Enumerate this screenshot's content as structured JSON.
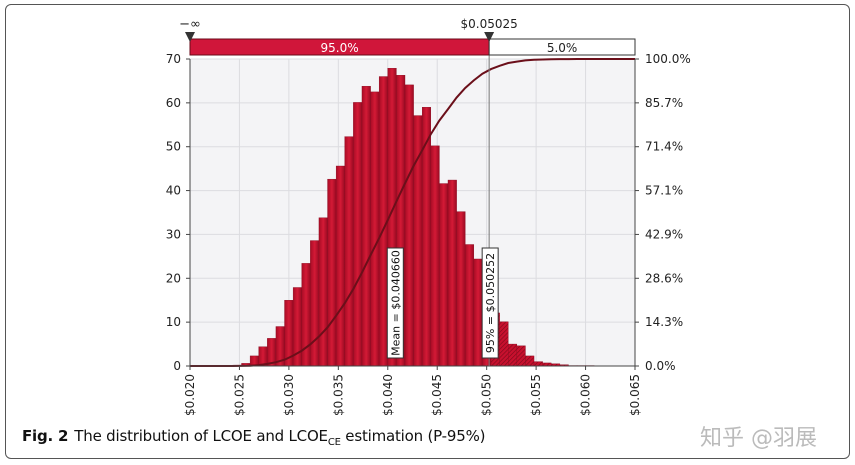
{
  "chart_data": {
    "type": "bar",
    "subtype": "histogram-with-cumulative-line",
    "bin_start": 0.0226,
    "bin_width": 0.00087,
    "values": [
      0.1,
      0.1,
      0.2,
      0.6,
      2.3,
      4.4,
      6.3,
      9.0,
      15.0,
      17.9,
      23.4,
      28.6,
      33.8,
      42.6,
      45.6,
      52.3,
      60.1,
      63.8,
      62.5,
      66.0,
      67.9,
      66.3,
      64.1,
      57.1,
      59.0,
      50.2,
      41.6,
      42.4,
      35.2,
      27.7,
      24.4,
      17.0,
      12.1,
      10.1,
      5.0,
      4.6,
      2.3,
      1.0,
      0.7,
      0.5,
      0.3,
      0.1,
      0.1,
      0.1
    ],
    "xlim": [
      0.02,
      0.065
    ],
    "ylim": [
      0,
      70
    ],
    "y2lim": [
      0,
      100
    ],
    "xticks": [
      "$0.020",
      "$0.025",
      "$0.030",
      "$0.035",
      "$0.040",
      "$0.045",
      "$0.050",
      "$0.055",
      "$0.060",
      "$0.065"
    ],
    "xtick_values": [
      0.02,
      0.025,
      0.03,
      0.035,
      0.04,
      0.045,
      0.05,
      0.055,
      0.06,
      0.065
    ],
    "yticks": [
      "0",
      "10",
      "20",
      "30",
      "40",
      "50",
      "60",
      "70"
    ],
    "y2ticks": [
      "0.0%",
      "14.3%",
      "28.6%",
      "42.9%",
      "57.1%",
      "71.4%",
      "85.7%",
      "100.0%"
    ],
    "grid": true,
    "bar_color": "#c8102e",
    "curve_color": "#6b0f1a",
    "cutoff": 0.05025,
    "cutoff_label": "$0.05025",
    "left_bound_label": "−∞",
    "range_left_label": "95.0%",
    "range_right_label": "5.0%",
    "mean_value": 0.04066,
    "mean_label": "Mean = $0.040660",
    "p95_value": 0.050252,
    "p95_label": "95% = $0.050252"
  },
  "caption": {
    "fig": "Fig. 2",
    "text_before": "The distribution of LCOE and LCOE",
    "sub": "CE",
    "text_after": " estimation (P-95%)"
  },
  "watermark": "知乎 @羽展"
}
